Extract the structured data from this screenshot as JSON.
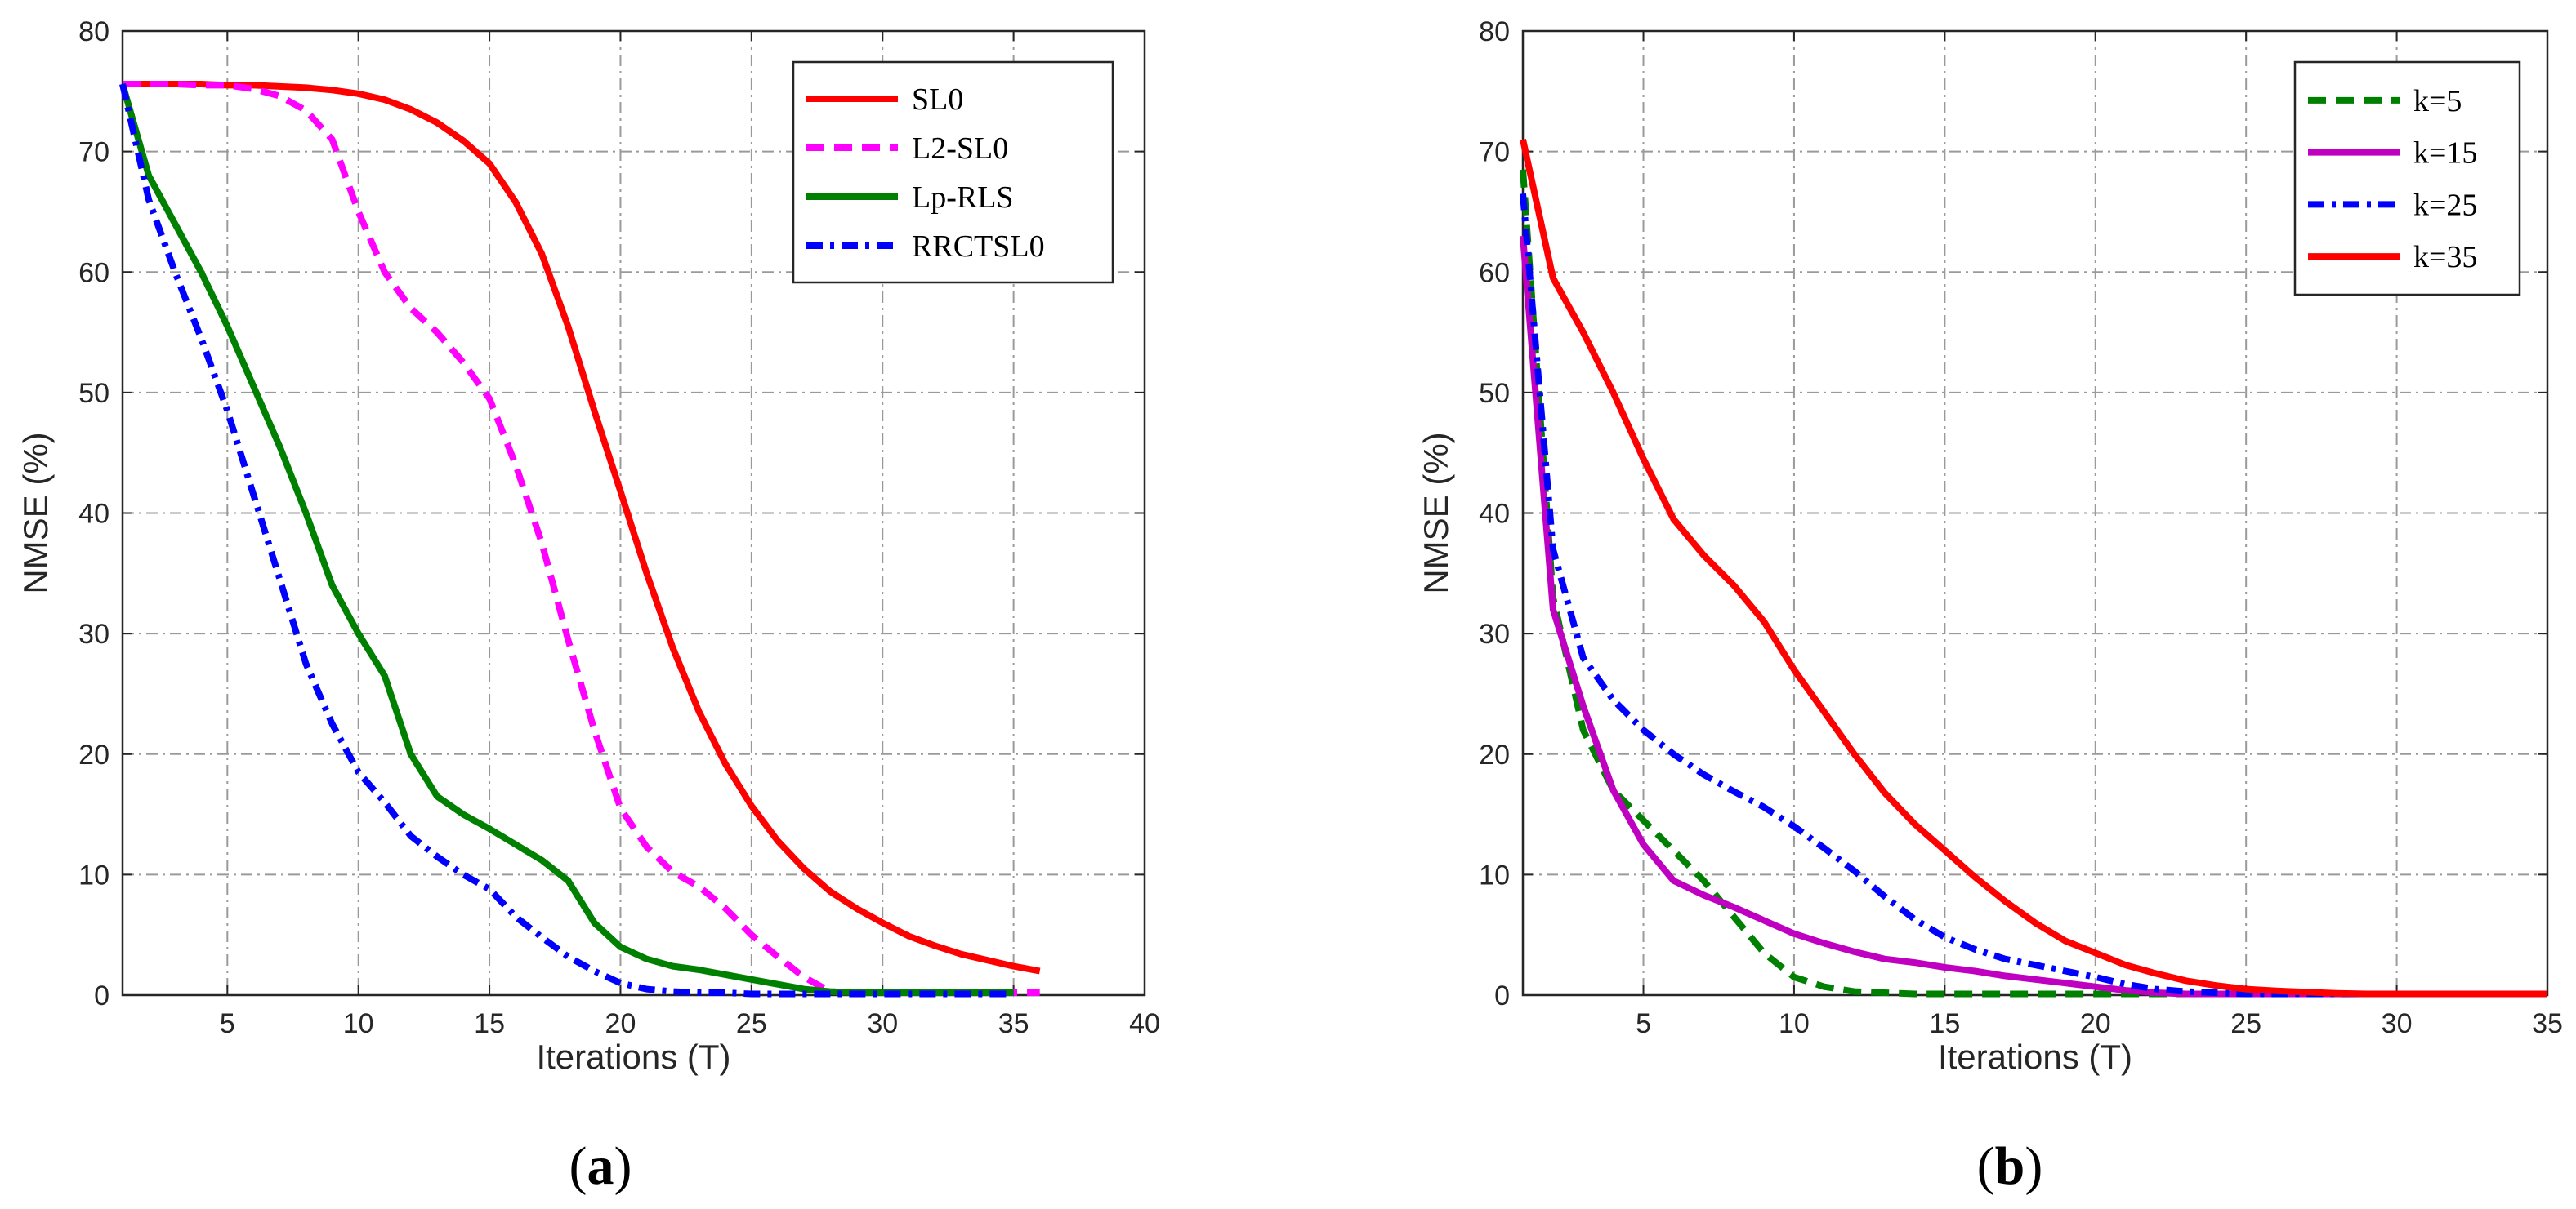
{
  "chart_data": [
    {
      "type": "line",
      "caption": "(a)",
      "caption_parts": [
        "(",
        "a",
        ")"
      ],
      "title": "",
      "xlabel": "Iterations (T)",
      "ylabel": "NMSE (%)",
      "xlim": [
        1,
        40
      ],
      "ylim": [
        0,
        80
      ],
      "xticks": [
        5,
        10,
        15,
        20,
        25,
        30,
        35,
        40
      ],
      "yticks": [
        0,
        10,
        20,
        30,
        40,
        50,
        60,
        70,
        80
      ],
      "grid": true,
      "legend_position": "top-right",
      "series": [
        {
          "name": "SL0",
          "color": "#ff0000",
          "dash": "solid",
          "x": [
            1,
            2,
            3,
            4,
            5,
            6,
            7,
            8,
            9,
            10,
            11,
            12,
            13,
            14,
            15,
            16,
            17,
            18,
            19,
            20,
            21,
            22,
            23,
            24,
            25,
            26,
            27,
            28,
            29,
            30,
            31,
            32,
            33,
            34,
            35,
            36
          ],
          "y": [
            75.6,
            75.6,
            75.6,
            75.6,
            75.5,
            75.5,
            75.4,
            75.3,
            75.1,
            74.8,
            74.3,
            73.5,
            72.4,
            70.9,
            69.0,
            65.8,
            61.5,
            55.5,
            48.5,
            41.8,
            35.0,
            28.8,
            23.5,
            19.2,
            15.7,
            12.8,
            10.5,
            8.6,
            7.2,
            6.0,
            4.9,
            4.1,
            3.4,
            2.9,
            2.4,
            2.0
          ]
        },
        {
          "name": "L2-SL0",
          "color": "#ff00ff",
          "dash": "dashed",
          "x": [
            1,
            2,
            3,
            4,
            5,
            6,
            7,
            8,
            9,
            10,
            11,
            12,
            13,
            14,
            15,
            16,
            17,
            18,
            19,
            20,
            21,
            22,
            23,
            24,
            25,
            26,
            27,
            28,
            29,
            30,
            31,
            32,
            33,
            34,
            35,
            36
          ],
          "y": [
            75.6,
            75.6,
            75.6,
            75.5,
            75.5,
            75.2,
            74.6,
            73.4,
            71.0,
            65.0,
            60.0,
            57.0,
            55.0,
            52.5,
            49.5,
            44.0,
            37.5,
            29.5,
            22.0,
            15.5,
            12.3,
            10.2,
            9.0,
            7.2,
            5.0,
            3.2,
            1.5,
            0.3,
            0.2,
            0.2,
            0.2,
            0.2,
            0.2,
            0.2,
            0.2,
            0.2
          ]
        },
        {
          "name": "Lp-RLS",
          "color": "#008000",
          "dash": "solid",
          "x": [
            1,
            2,
            3,
            4,
            5,
            6,
            7,
            8,
            9,
            10,
            11,
            12,
            13,
            14,
            15,
            16,
            17,
            18,
            19,
            20,
            21,
            22,
            23,
            24,
            25,
            26,
            27,
            28,
            29,
            30,
            31,
            32,
            33,
            34,
            35
          ],
          "y": [
            75.6,
            68.0,
            64.0,
            60.0,
            55.5,
            50.5,
            45.5,
            40.0,
            34.0,
            30.0,
            26.5,
            20.0,
            16.5,
            15.0,
            13.8,
            12.5,
            11.2,
            9.5,
            6.0,
            4.0,
            3.0,
            2.4,
            2.1,
            1.7,
            1.3,
            0.9,
            0.5,
            0.3,
            0.2,
            0.2,
            0.2,
            0.2,
            0.2,
            0.2,
            0.2
          ]
        },
        {
          "name": "RRCTSL0",
          "color": "#0000ff",
          "dash": "dashdot",
          "x": [
            1,
            2,
            3,
            4,
            5,
            6,
            7,
            8,
            9,
            10,
            11,
            12,
            13,
            14,
            15,
            16,
            17,
            18,
            19,
            20,
            21,
            22,
            23,
            24,
            25,
            26,
            27,
            28,
            29,
            30,
            31,
            32,
            33,
            34,
            35
          ],
          "y": [
            75.6,
            66.0,
            60.0,
            54.5,
            48.5,
            41.5,
            34.5,
            27.5,
            22.5,
            18.5,
            16.0,
            13.2,
            11.5,
            10.0,
            8.8,
            6.5,
            4.8,
            3.2,
            2.0,
            1.0,
            0.5,
            0.3,
            0.2,
            0.2,
            0.1,
            0.1,
            0.1,
            0.1,
            0.1,
            0.1,
            0.1,
            0.1,
            0.1,
            0.1,
            0.1
          ]
        }
      ]
    },
    {
      "type": "line",
      "caption": "(b)",
      "caption_parts": [
        "(",
        "b",
        ")"
      ],
      "title": "",
      "xlabel": "Iterations (T)",
      "ylabel": "NMSE (%)",
      "xlim": [
        1,
        35
      ],
      "ylim": [
        0,
        80
      ],
      "xticks": [
        5,
        10,
        15,
        20,
        25,
        30,
        35
      ],
      "yticks": [
        0,
        10,
        20,
        30,
        40,
        50,
        60,
        70,
        80
      ],
      "grid": true,
      "legend_position": "top-right",
      "series": [
        {
          "name": "k=5",
          "color": "#008000",
          "dash": "dashed",
          "x": [
            1,
            2,
            3,
            4,
            5,
            6,
            7,
            8,
            9,
            10,
            11,
            12,
            13,
            14,
            15,
            16,
            17,
            18,
            19,
            20,
            21,
            22,
            23,
            24,
            25,
            26,
            27,
            28,
            29,
            30,
            31,
            32,
            33,
            34,
            35
          ],
          "y": [
            68.5,
            33.0,
            22.0,
            17.0,
            14.5,
            12.0,
            9.5,
            6.5,
            3.5,
            1.5,
            0.7,
            0.3,
            0.2,
            0.1,
            0.1,
            0.1,
            0.1,
            0.1,
            0.1,
            0.1,
            0.1,
            0.1,
            0.1,
            0.1,
            0.1,
            0.1,
            0.1,
            0.1,
            0.1,
            0.1,
            0.1,
            0.1,
            0.1,
            0.1,
            0.1
          ]
        },
        {
          "name": "k=15",
          "color": "#c000c0",
          "dash": "solid",
          "x": [
            1,
            2,
            3,
            4,
            5,
            6,
            7,
            8,
            9,
            10,
            11,
            12,
            13,
            14,
            15,
            16,
            17,
            18,
            19,
            20,
            21,
            22,
            23,
            24,
            25,
            26,
            27,
            28,
            29,
            30,
            31,
            32,
            33,
            34,
            35
          ],
          "y": [
            63.0,
            32.0,
            24.0,
            17.0,
            12.5,
            9.5,
            8.3,
            7.3,
            6.2,
            5.1,
            4.3,
            3.6,
            3.0,
            2.7,
            2.3,
            2.0,
            1.6,
            1.3,
            1.0,
            0.7,
            0.4,
            0.2,
            0.1,
            0.1,
            0.1,
            0.1,
            0.1,
            0.1,
            0.1,
            0.1,
            0.1,
            0.1,
            0.1,
            0.1,
            0.1
          ]
        },
        {
          "name": "k=25",
          "color": "#0000ff",
          "dash": "dashdot",
          "x": [
            1,
            2,
            3,
            4,
            5,
            6,
            7,
            8,
            9,
            10,
            11,
            12,
            13,
            14,
            15,
            16,
            17,
            18,
            19,
            20,
            21,
            22,
            23,
            24,
            25,
            26,
            27,
            28,
            29,
            30,
            31,
            32,
            33,
            34,
            35
          ],
          "y": [
            66.5,
            37.0,
            28.0,
            24.5,
            22.0,
            20.0,
            18.3,
            16.9,
            15.6,
            14.0,
            12.2,
            10.3,
            8.2,
            6.3,
            4.8,
            3.8,
            3.0,
            2.5,
            2.0,
            1.5,
            0.9,
            0.5,
            0.3,
            0.2,
            0.1,
            0.1,
            0.1,
            0.1,
            0.1,
            0.1,
            0.1,
            0.1,
            0.1,
            0.1,
            0.1
          ]
        },
        {
          "name": "k=35",
          "color": "#ff0000",
          "dash": "solid",
          "x": [
            1,
            2,
            3,
            4,
            5,
            6,
            7,
            8,
            9,
            10,
            11,
            12,
            13,
            14,
            15,
            16,
            17,
            18,
            19,
            20,
            21,
            22,
            23,
            24,
            25,
            26,
            27,
            28,
            29,
            30,
            31,
            32,
            33,
            34,
            35
          ],
          "y": [
            71.0,
            59.5,
            55.0,
            50.0,
            44.5,
            39.5,
            36.5,
            34.0,
            31.0,
            27.0,
            23.5,
            20.0,
            16.8,
            14.2,
            12.0,
            9.8,
            7.8,
            6.0,
            4.5,
            3.5,
            2.5,
            1.8,
            1.2,
            0.8,
            0.5,
            0.35,
            0.25,
            0.15,
            0.1,
            0.1,
            0.1,
            0.1,
            0.1,
            0.1,
            0.1
          ]
        }
      ]
    }
  ]
}
